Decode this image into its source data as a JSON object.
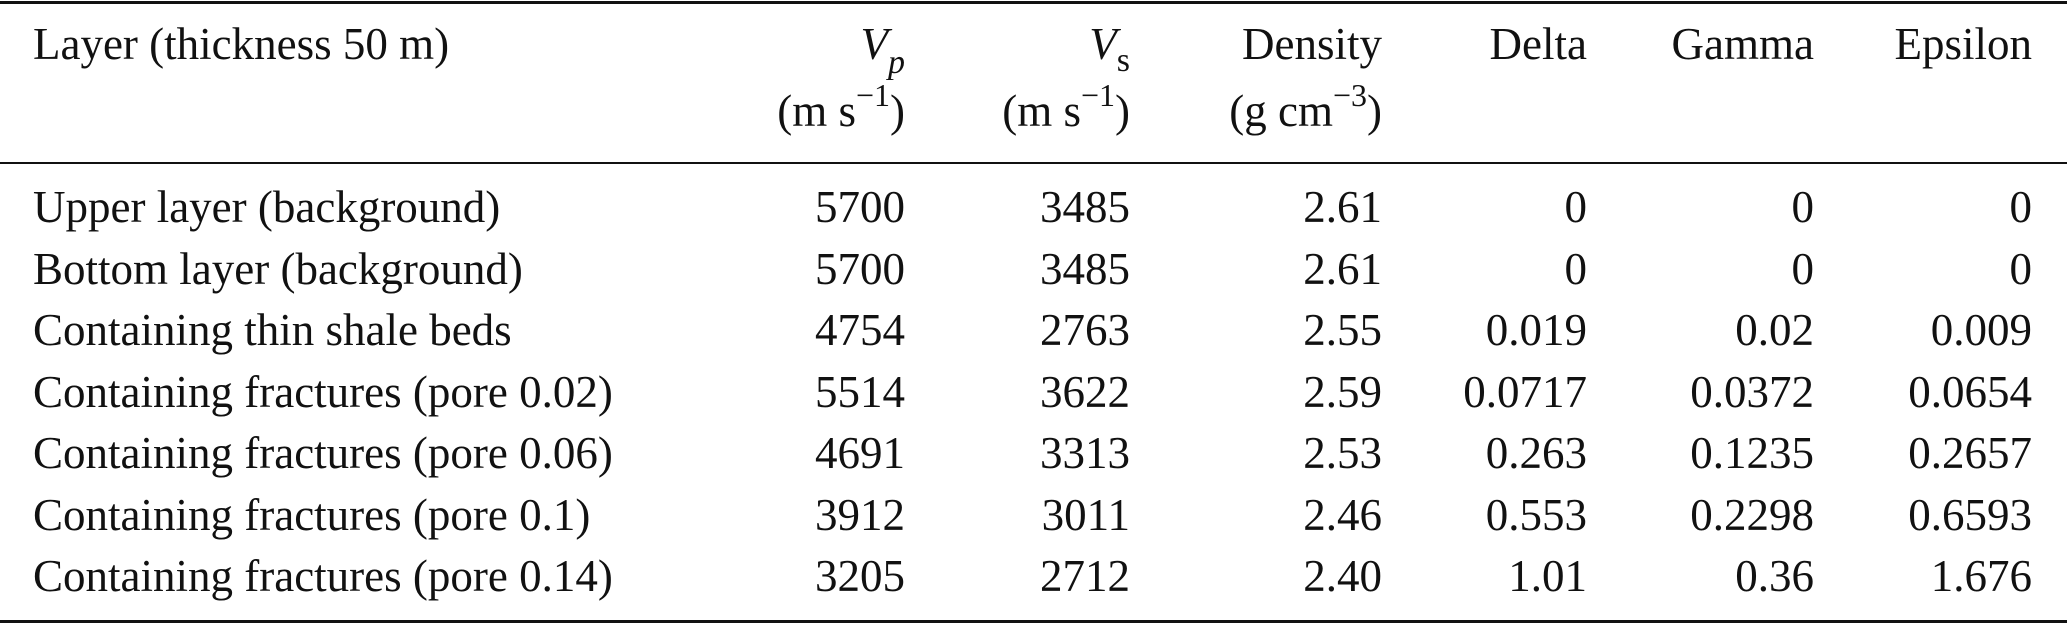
{
  "table": {
    "headers": {
      "layer": "Layer (thickness 50 m)",
      "vp_symbol": "V",
      "vp_sub": "p",
      "vp_unit_pre": "(m s",
      "vp_unit_sup": "−1",
      "vp_unit_post": ")",
      "vs_symbol": "V",
      "vs_sub": "s",
      "vs_unit_pre": "(m s",
      "vs_unit_sup": "−1",
      "vs_unit_post": ")",
      "density": "Density",
      "density_unit_pre": "(g cm",
      "density_unit_sup": "−3",
      "density_unit_post": ")",
      "delta": "Delta",
      "gamma": "Gamma",
      "epsilon": "Epsilon"
    },
    "rows": [
      {
        "layer": "Upper layer (background)",
        "vp": "5700",
        "vs": "3485",
        "density": "2.61",
        "delta": "0",
        "gamma": "0",
        "epsilon": "0"
      },
      {
        "layer": "Bottom layer (background)",
        "vp": "5700",
        "vs": "3485",
        "density": "2.61",
        "delta": "0",
        "gamma": "0",
        "epsilon": "0"
      },
      {
        "layer": "Containing thin shale beds",
        "vp": "4754",
        "vs": "2763",
        "density": "2.55",
        "delta": "0.019",
        "gamma": "0.02",
        "epsilon": "0.009"
      },
      {
        "layer": "Containing fractures (pore 0.02)",
        "vp": "5514",
        "vs": "3622",
        "density": "2.59",
        "delta": "0.0717",
        "gamma": "0.0372",
        "epsilon": "0.0654"
      },
      {
        "layer": "Containing fractures (pore 0.06)",
        "vp": "4691",
        "vs": "3313",
        "density": "2.53",
        "delta": "0.263",
        "gamma": "0.1235",
        "epsilon": "0.2657"
      },
      {
        "layer": "Containing fractures (pore 0.1)",
        "vp": "3912",
        "vs": "3011",
        "density": "2.46",
        "delta": "0.553",
        "gamma": "0.2298",
        "epsilon": "0.6593"
      },
      {
        "layer": "Containing fractures (pore 0.14)",
        "vp": "3205",
        "vs": "2712",
        "density": "2.40",
        "delta": "1.01",
        "gamma": "0.36",
        "epsilon": "1.676"
      }
    ]
  }
}
